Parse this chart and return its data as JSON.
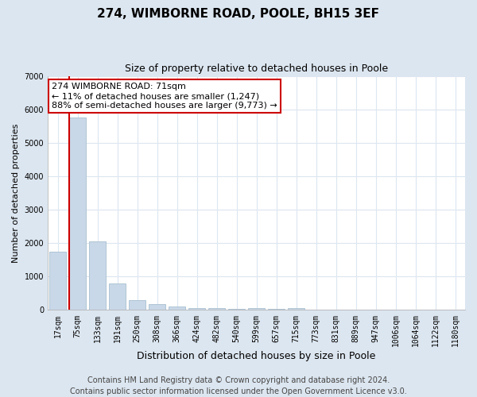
{
  "title": "274, WIMBORNE ROAD, POOLE, BH15 3EF",
  "subtitle": "Size of property relative to detached houses in Poole",
  "xlabel": "Distribution of detached houses by size in Poole",
  "ylabel": "Number of detached properties",
  "categories": [
    "17sqm",
    "75sqm",
    "133sqm",
    "191sqm",
    "250sqm",
    "308sqm",
    "366sqm",
    "424sqm",
    "482sqm",
    "540sqm",
    "599sqm",
    "657sqm",
    "715sqm",
    "773sqm",
    "831sqm",
    "889sqm",
    "947sqm",
    "1006sqm",
    "1064sqm",
    "1122sqm",
    "1180sqm"
  ],
  "values": [
    1750,
    5750,
    2050,
    800,
    300,
    175,
    105,
    70,
    50,
    30,
    55,
    25,
    60,
    0,
    0,
    0,
    0,
    0,
    0,
    0,
    0
  ],
  "bar_color": "#c8d8e8",
  "bar_edge_color": "#a8bfd0",
  "vline_color": "#cc0000",
  "vline_x_index": 1,
  "annotation_text": "274 WIMBORNE ROAD: 71sqm\n← 11% of detached houses are smaller (1,247)\n88% of semi-detached houses are larger (9,773) →",
  "annotation_box_facecolor": "#ffffff",
  "annotation_box_edgecolor": "#cc0000",
  "ylim": [
    0,
    7000
  ],
  "yticks": [
    0,
    1000,
    2000,
    3000,
    4000,
    5000,
    6000,
    7000
  ],
  "fig_bg_color": "#dce6f0",
  "plot_bg_color": "#ffffff",
  "grid_color": "#dce6f0",
  "footnote": "Contains HM Land Registry data © Crown copyright and database right 2024.\nContains public sector information licensed under the Open Government Licence v3.0.",
  "title_fontsize": 11,
  "subtitle_fontsize": 9,
  "xlabel_fontsize": 9,
  "ylabel_fontsize": 8,
  "tick_fontsize": 7,
  "annotation_fontsize": 8,
  "footnote_fontsize": 7
}
